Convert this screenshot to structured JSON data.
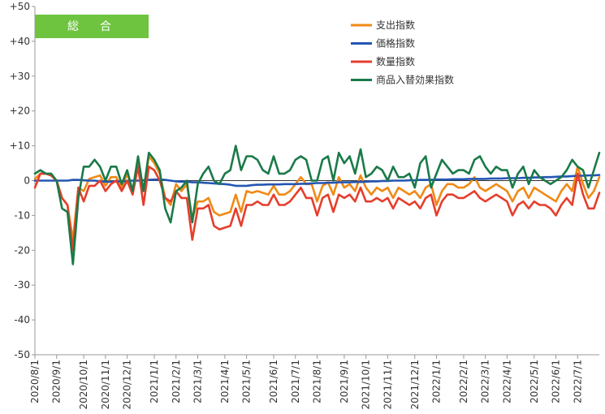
{
  "chart_data": {
    "type": "line",
    "title": "",
    "badge": "総　合",
    "xlabel": "",
    "ylabel": "",
    "ylim": [
      -50,
      50
    ],
    "yticks": [
      -50,
      -40,
      -30,
      -20,
      -10,
      0,
      10,
      20,
      30,
      40,
      50
    ],
    "ytick_labels": [
      "-50",
      "-40",
      "-30",
      "-20",
      "-10",
      "0",
      "+10",
      "+20",
      "+30",
      "+40",
      "+50"
    ],
    "xtick_labels": [
      "2020/8/1",
      "2020/9/1",
      "2020/10/1",
      "2020/11/1",
      "2020/12/1",
      "2021/1/1",
      "2021/2/1",
      "2021/3/1",
      "2021/4/1",
      "2021/5/1",
      "2021/6/1",
      "2021/7/1",
      "2021/8/1",
      "2021/9/1",
      "2021/10/1",
      "2021/11/1",
      "2021/12/1",
      "2022/1/1",
      "2022/2/1",
      "2022/3/1",
      "2022/4/1",
      "2022/5/1",
      "2022/6/1",
      "2022/7/1"
    ],
    "xtick_week_index": [
      0,
      4,
      9,
      13,
      17,
      22,
      26,
      30,
      35,
      39,
      44,
      48,
      52,
      57,
      61,
      65,
      70,
      74,
      79,
      83,
      87,
      92,
      96,
      100
    ],
    "grid": false,
    "legend_position": "top-right",
    "colors": {
      "badge": "#6ec43f",
      "axis": "#999999",
      "zero_line": "#333333"
    },
    "series": [
      {
        "name": "支出指数",
        "color": "#f08a16",
        "values": [
          0.5,
          2,
          2,
          1.5,
          0,
          -5,
          -7,
          -17,
          -2,
          -3,
          0.5,
          1,
          1.5,
          -1.5,
          1,
          1,
          -2,
          2,
          -3,
          5,
          -3,
          7,
          5,
          2,
          -5,
          -7,
          -1,
          -3,
          -1,
          -11,
          -6,
          -6,
          -5,
          -9,
          -10,
          -9.5,
          -9,
          -4,
          -9,
          -3,
          -3.5,
          -3,
          -3.5,
          -4,
          -1.5,
          -4,
          -4,
          -3,
          -1,
          1,
          -1,
          -1,
          -6,
          -1.5,
          -0.5,
          -4,
          1,
          -2,
          -1,
          -3,
          1.5,
          -2,
          -4,
          -2,
          -3,
          -2,
          -5,
          -2,
          -3,
          -4,
          -3,
          -5,
          -2,
          -1,
          -7,
          -3,
          -1,
          -1,
          -2,
          -2,
          -1,
          1,
          -2,
          -3,
          -2,
          -1,
          -2,
          -3,
          -6,
          -3,
          -2,
          -5,
          -2,
          -3,
          -4,
          -5,
          -6,
          -3,
          -1,
          -3,
          4,
          -1,
          -5,
          -3,
          1
        ]
      },
      {
        "name": "価格指数",
        "color": "#2456b3",
        "values": [
          0,
          0,
          0,
          0,
          0,
          0,
          0,
          0.2,
          0.2,
          0.1,
          0,
          0,
          -0.2,
          -0.3,
          -0.3,
          -0.2,
          -0.2,
          -0.1,
          0,
          0,
          0.1,
          0.2,
          0.3,
          0.3,
          0.2,
          0,
          -0.2,
          -0.3,
          -0.3,
          -0.5,
          -0.5,
          -0.6,
          -0.7,
          -0.8,
          -0.9,
          -1,
          -1.2,
          -1.5,
          -1.5,
          -1.5,
          -1.3,
          -1.2,
          -1.2,
          -1.1,
          -1.1,
          -1.1,
          -1,
          -1,
          -1,
          -0.9,
          -0.9,
          -0.8,
          -0.7,
          -0.7,
          -0.6,
          -0.6,
          -0.5,
          -0.5,
          -0.5,
          -0.4,
          -0.4,
          -0.3,
          -0.2,
          -0.2,
          -0.1,
          -0.1,
          0,
          0,
          0,
          0.1,
          0.1,
          0.2,
          0.2,
          0.2,
          0.3,
          0.3,
          0.3,
          0.4,
          0.4,
          0.4,
          0.5,
          0.5,
          0.5,
          0.5,
          0.6,
          0.6,
          0.6,
          0.7,
          0.7,
          0.7,
          0.8,
          0.8,
          0.9,
          0.9,
          1,
          1,
          1.1,
          1.2,
          1.2,
          1.3,
          1.4,
          1.4,
          1.5,
          1.5,
          1.6
        ]
      },
      {
        "name": "数量指数",
        "color": "#e53e2c",
        "values": [
          -2,
          2,
          2,
          1.5,
          0,
          -5,
          -7,
          -20,
          -2,
          -6,
          -1.5,
          -1.5,
          0,
          -3,
          -1,
          0,
          -3,
          0,
          -4,
          4,
          -7,
          4,
          3,
          0,
          -5,
          -6,
          -3,
          -5,
          -5,
          -17,
          -8,
          -8,
          -7,
          -13,
          -14,
          -13.5,
          -13,
          -8,
          -13,
          -7,
          -7,
          -6,
          -7,
          -7,
          -4,
          -7,
          -7,
          -6,
          -4,
          -2,
          -5,
          -5,
          -10,
          -5,
          -4,
          -9,
          -4,
          -5,
          -4,
          -6,
          -2,
          -6,
          -6,
          -5,
          -6,
          -5,
          -8,
          -5,
          -6,
          -7,
          -6,
          -8,
          -5,
          -4,
          -10,
          -6,
          -4,
          -4,
          -5,
          -5,
          -4,
          -3,
          -5,
          -6,
          -5,
          -4,
          -5,
          -6,
          -10,
          -7,
          -6,
          -8,
          -6,
          -7,
          -7,
          -8,
          -10,
          -7,
          -5,
          -7,
          2,
          -4,
          -8,
          -8,
          -3.5
        ]
      },
      {
        "name": "商品入替効果指数",
        "color": "#1a7a48",
        "values": [
          2,
          3,
          2,
          2,
          0,
          -8,
          -9,
          -24,
          -5,
          4,
          4,
          6,
          4,
          0,
          4,
          4,
          -1,
          3,
          -3,
          7,
          -3,
          8,
          6,
          3,
          -8,
          -12,
          -3,
          -2,
          0,
          -12,
          -1,
          2,
          4,
          0,
          -1,
          2,
          3,
          10,
          3,
          7,
          7,
          6,
          3,
          2,
          7,
          2,
          2,
          3,
          6,
          7,
          6,
          0,
          0,
          6,
          7,
          0,
          8,
          5,
          7,
          2,
          9,
          1,
          2,
          4,
          3,
          0,
          4,
          1,
          1,
          2,
          -2,
          5,
          7,
          -2,
          2,
          6,
          4,
          2,
          3,
          3,
          2,
          6,
          7,
          4,
          2,
          4,
          3,
          3,
          -2,
          2,
          4,
          -1,
          3,
          1,
          0,
          -1,
          0,
          1,
          3,
          6,
          4,
          3,
          -2,
          3,
          8
        ]
      }
    ]
  }
}
